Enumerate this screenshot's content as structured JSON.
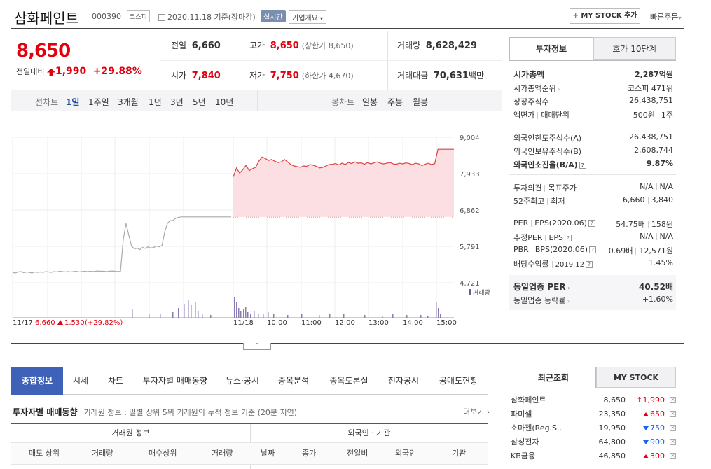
{
  "header": {
    "title": "삼화페인트",
    "code": "000390",
    "market": "코스피",
    "date": "2020.11.18",
    "date_basis": "기준(장마감)",
    "realtime": "실시간",
    "overview": "기업개요",
    "mystock_add": "MY STOCK 추가",
    "quick_order": "빠른주문"
  },
  "price": {
    "current": "8,650",
    "change_label": "전일대비",
    "change": "1,990",
    "change_pct": "+29.88%"
  },
  "stats": {
    "prev_label": "전일",
    "prev": "6,660",
    "high_label": "고가",
    "high": "8,650",
    "upper_limit": "(상한가 8,650)",
    "volume_label": "거래량",
    "volume": "8,628,429",
    "open_label": "시가",
    "open": "7,840",
    "low_label": "저가",
    "low": "7,750",
    "lower_limit": "(하한가 4,670)",
    "amount_label": "거래대금",
    "amount": "70,631",
    "amount_unit": "백만"
  },
  "chart_tabs": {
    "line_label": "선차트",
    "periods": [
      "1일",
      "1주일",
      "3개월",
      "1년",
      "3년",
      "5년",
      "10년"
    ],
    "active_period": "1일",
    "candle_label": "봉차트",
    "candles": [
      "일봉",
      "주봉",
      "월봉"
    ]
  },
  "chart_data": {
    "type": "line",
    "y_ticks": [
      "9,004",
      "7,933",
      "6,862",
      "5,791",
      "4,721"
    ],
    "ylim": [
      4721,
      9004
    ],
    "volume_label": "거래량",
    "prev_day_label": "11/17",
    "prev_day_close": "6,660",
    "prev_day_change": "1,530",
    "prev_day_pct": "(+29.82%)",
    "x_ticks": [
      "11/18",
      "10:00",
      "11:00",
      "12:00",
      "13:00",
      "14:00",
      "15:00"
    ],
    "prev_close_line": 6660,
    "prev_day_series": [
      5030,
      5010,
      5040,
      5050,
      5020,
      5040,
      5030,
      5010,
      5040,
      5030,
      5040,
      5030,
      5050,
      5040,
      5030,
      5050,
      5040,
      5060,
      5050,
      5040,
      5050,
      5040,
      5050,
      5060,
      5040,
      5050,
      5060,
      5050,
      5060,
      5050,
      5060,
      5070,
      5060,
      5060,
      5050,
      5060,
      5070,
      5060,
      5050,
      5060,
      6000,
      6470,
      6120,
      5800,
      5720,
      5740,
      5700,
      5760,
      5730,
      5780,
      5740,
      5760,
      5800,
      5780,
      5820,
      6230,
      6480,
      6550,
      6560,
      6620,
      6650,
      6660,
      6660,
      6660,
      6660,
      6660,
      6660,
      6660,
      6660,
      6660,
      6660,
      6660,
      6660,
      6660,
      6660,
      6660,
      6660,
      6660,
      6660,
      6660
    ],
    "today_series": [
      7840,
      8100,
      7950,
      8050,
      8180,
      8020,
      8080,
      8120,
      8300,
      8420,
      8380,
      8320,
      8350,
      8300,
      8260,
      8280,
      8350,
      8280,
      8200,
      8160,
      8140,
      8120,
      8160,
      8150,
      8200,
      8180,
      8150,
      8100,
      8120,
      8160,
      8200,
      8210,
      8230,
      8190,
      8240,
      8200,
      8260,
      8230,
      8280,
      8240,
      8250,
      8210,
      8260,
      8220,
      8250,
      8280,
      8240,
      8220,
      8240,
      8260,
      8220,
      8210,
      8240,
      8220,
      8250,
      8230,
      8200,
      8240,
      8220,
      8170,
      8210,
      8240,
      8200,
      8230,
      8650,
      8650,
      8650,
      8650,
      8650,
      8650
    ]
  },
  "right_panel": {
    "tab_invest": "투자정보",
    "tab_orderbook": "호가 10단계",
    "market_cap_label": "시가총액",
    "market_cap": "2,287억원",
    "cap_rank_label": "시가총액순위",
    "cap_rank": "코스피 471위",
    "shares_label": "상장주식수",
    "shares": "26,438,751",
    "face_label": "액면가",
    "unit_label": "매매단위",
    "face": "500원",
    "unit": "1주",
    "foreign_limit_label": "외국인한도주식수(A)",
    "foreign_limit": "26,438,751",
    "foreign_hold_label": "외국인보유주식수(B)",
    "foreign_hold": "2,608,744",
    "foreign_ratio_label": "외국인소진율(B/A)",
    "foreign_ratio": "9.87%",
    "opinion_label": "투자의견",
    "target_label": "목표주가",
    "opinion": "N/A",
    "target": "N/A",
    "w52_high_label": "52주최고",
    "w52_low_label": "최저",
    "w52_high": "6,660",
    "w52_low": "3,840",
    "per_label": "PER",
    "eps_label": "EPS(2020.06)",
    "per": "54.75배",
    "eps": "158원",
    "est_per_label": "추정PER",
    "est_eps_label": "EPS",
    "est_per": "N/A",
    "est_eps": "N/A",
    "pbr_label": "PBR",
    "bps_label": "BPS(2020.06)",
    "pbr": "0.69배",
    "bps": "12,571원",
    "div_label": "배당수익률",
    "div_date": "2019.12",
    "div": "1.45%",
    "ind_per_label": "동일업종 PER",
    "ind_per": "40.52배",
    "ind_rate_label": "동일업종 등락률",
    "ind_rate": "+1.60%"
  },
  "bottom_tabs": [
    "종합정보",
    "시세",
    "차트",
    "투자자별 매매동향",
    "뉴스·공시",
    "종목분석",
    "종목토론실",
    "전자공시",
    "공매도현황"
  ],
  "investor": {
    "title": "투자자별 매매동향",
    "desc": "거래원 정보 : 일별 상위 5위 거래원의 누적 정보 기준 (20분 지연)",
    "more": "더보기",
    "group1": "거래원 정보",
    "group2": "외국인 · 기관",
    "cols": [
      "매도 상위",
      "거래량",
      "매수상위",
      "거래량",
      "날짜",
      "종가",
      "전일비",
      "외국인",
      "기관"
    ]
  },
  "recent": {
    "tab_recent": "최근조회",
    "tab_mystock": "MY STOCK",
    "items": [
      {
        "name": "삼화페인트",
        "price": "8,650",
        "dir": "up-strong",
        "change": "1,990"
      },
      {
        "name": "파미셀",
        "price": "23,350",
        "dir": "up",
        "change": "650"
      },
      {
        "name": "소마젠(Reg.S..",
        "price": "19,950",
        "dir": "down",
        "change": "750"
      },
      {
        "name": "삼성전자",
        "price": "64,800",
        "dir": "down",
        "change": "900"
      },
      {
        "name": "KB금융",
        "price": "46,850",
        "dir": "up",
        "change": "300"
      }
    ]
  }
}
